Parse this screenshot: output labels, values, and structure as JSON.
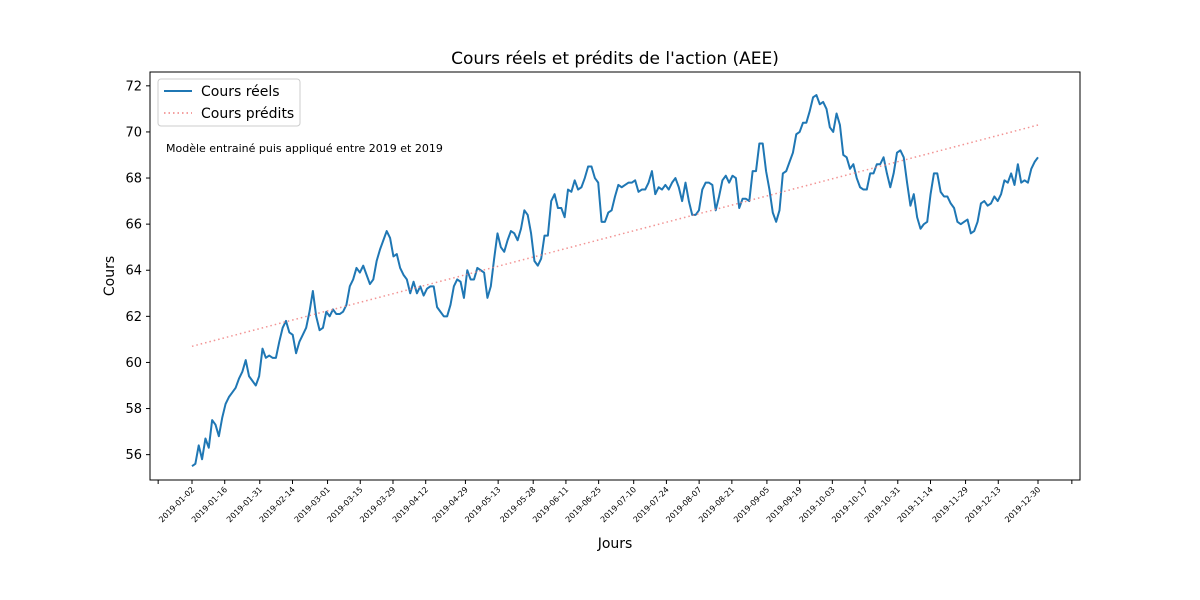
{
  "chart_data": {
    "type": "line",
    "title": "Cours réels et prédits de l'action (AEE)",
    "xlabel": "Jours",
    "ylabel": "Cours",
    "annotation": "Modèle entrainé puis appliqué entre 2019 et 2019",
    "ylim": [
      54.9,
      72.6
    ],
    "yticks": [
      56,
      58,
      60,
      62,
      64,
      66,
      68,
      70,
      72
    ],
    "grid": false,
    "legend_position": "top-left",
    "x_start": "2019-01-02",
    "x_end": "2019-12-30",
    "xtick_labels": [
      "2019-01-02",
      "2019-01-16",
      "2019-01-31",
      "2019-02-14",
      "2019-03-01",
      "2019-03-15",
      "2019-03-29",
      "2019-04-12",
      "2019-04-29",
      "2019-05-13",
      "2019-05-28",
      "2019-06-11",
      "2019-06-25",
      "2019-07-10",
      "2019-07-24",
      "2019-08-07",
      "2019-08-21",
      "2019-09-05",
      "2019-09-19",
      "2019-10-03",
      "2019-10-17",
      "2019-10-31",
      "2019-11-14",
      "2019-11-29",
      "2019-12-13",
      "2019-12-30"
    ],
    "series": [
      {
        "name": "Cours réels",
        "color": "#1f77b4",
        "style": "solid",
        "values": [
          55.5,
          55.6,
          56.4,
          55.8,
          56.7,
          56.3,
          57.5,
          57.3,
          56.8,
          57.6,
          58.2,
          58.5,
          58.7,
          58.9,
          59.3,
          59.6,
          60.1,
          59.4,
          59.2,
          59.0,
          59.4,
          60.6,
          60.2,
          60.3,
          60.2,
          60.2,
          60.9,
          61.5,
          61.8,
          61.3,
          61.2,
          60.4,
          60.9,
          61.2,
          61.5,
          62.2,
          63.1,
          62.0,
          61.4,
          61.5,
          62.2,
          62.0,
          62.3,
          62.1,
          62.1,
          62.2,
          62.5,
          63.3,
          63.6,
          64.1,
          63.9,
          64.2,
          63.8,
          63.4,
          63.6,
          64.4,
          64.9,
          65.3,
          65.7,
          65.4,
          64.6,
          64.7,
          64.1,
          63.8,
          63.6,
          63.0,
          63.5,
          63.0,
          63.3,
          62.9,
          63.2,
          63.3,
          63.3,
          62.4,
          62.2,
          62.0,
          62.0,
          62.5,
          63.3,
          63.6,
          63.5,
          62.8,
          64.0,
          63.6,
          63.6,
          64.1,
          64.0,
          63.9,
          62.8,
          63.3,
          64.5,
          65.6,
          65.0,
          64.8,
          65.3,
          65.7,
          65.6,
          65.3,
          65.8,
          66.6,
          66.4,
          65.6,
          64.4,
          64.2,
          64.5,
          65.5,
          65.5,
          67.0,
          67.3,
          66.7,
          66.7,
          66.3,
          67.5,
          67.4,
          67.9,
          67.5,
          67.6,
          68.0,
          68.5,
          68.5,
          68.0,
          67.8,
          66.1,
          66.1,
          66.5,
          66.6,
          67.2,
          67.7,
          67.6,
          67.7,
          67.8,
          67.8,
          67.9,
          67.4,
          67.5,
          67.5,
          67.8,
          68.3,
          67.3,
          67.6,
          67.5,
          67.7,
          67.5,
          67.8,
          68.0,
          67.6,
          67.0,
          67.8,
          67.0,
          66.4,
          66.4,
          66.6,
          67.5,
          67.8,
          67.8,
          67.7,
          66.6,
          67.2,
          67.9,
          68.1,
          67.8,
          68.1,
          68.0,
          66.7,
          67.1,
          67.1,
          67.0,
          68.3,
          68.3,
          69.5,
          69.5,
          68.3,
          67.5,
          66.5,
          66.1,
          66.6,
          68.2,
          68.3,
          68.7,
          69.1,
          69.9,
          70.0,
          70.4,
          70.4,
          70.9,
          71.5,
          71.6,
          71.2,
          71.3,
          71.0,
          70.2,
          70.0,
          70.8,
          70.3,
          69.0,
          68.9,
          68.4,
          68.6,
          68.0,
          67.6,
          67.5,
          67.5,
          68.2,
          68.2,
          68.6,
          68.6,
          68.9,
          68.2,
          67.6,
          68.2,
          69.1,
          69.2,
          68.9,
          67.8,
          66.8,
          67.3,
          66.3,
          65.8,
          66.0,
          66.1,
          67.3,
          68.2,
          68.2,
          67.4,
          67.2,
          67.2,
          66.9,
          66.7,
          66.1,
          66.0,
          66.1,
          66.2,
          65.6,
          65.7,
          66.1,
          66.9,
          67.0,
          66.8,
          66.9,
          67.2,
          67.0,
          67.3,
          67.9,
          67.8,
          68.2,
          67.7,
          68.6,
          67.8,
          67.9,
          67.8,
          68.4,
          68.7,
          68.9
        ]
      },
      {
        "name": "Cours prédits",
        "color": "#f08080",
        "style": "dotted",
        "values": [
          60.7,
          70.3
        ]
      }
    ]
  }
}
